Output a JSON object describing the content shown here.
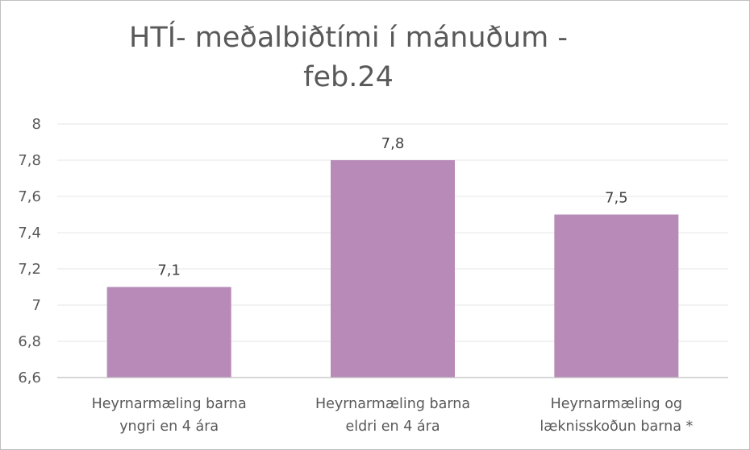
{
  "chart_data": {
    "type": "bar",
    "title": "HTÍ- meðalbiðtími í mánuðum -\nfeb.24",
    "categories": [
      [
        "Heyrnarmæling barna",
        "yngri en 4 ára"
      ],
      [
        "Heyrnarmæling barna",
        "eldri en 4 ára"
      ],
      [
        "Heyrnarmæling og",
        "læknisskoðun barna *"
      ]
    ],
    "values": [
      7.1,
      7.8,
      7.5
    ],
    "data_labels": [
      "7,1",
      "7,8",
      "7,5"
    ],
    "ylim": [
      6.6,
      8
    ],
    "yticks": [
      "8",
      "7,8",
      "7,6",
      "7,4",
      "7,2",
      "7",
      "6,8",
      "6,6"
    ],
    "ytick_values": [
      8,
      7.8,
      7.6,
      7.4,
      7.2,
      7,
      6.8,
      6.6
    ],
    "xlabel": "",
    "ylabel": "",
    "grid": true,
    "legend": "none",
    "colors": {
      "bar": "#b78ab8",
      "grid": "#e6e6e6",
      "axis": "#bfbfbf",
      "text": "#595959",
      "border": "#bfbfbf"
    }
  }
}
